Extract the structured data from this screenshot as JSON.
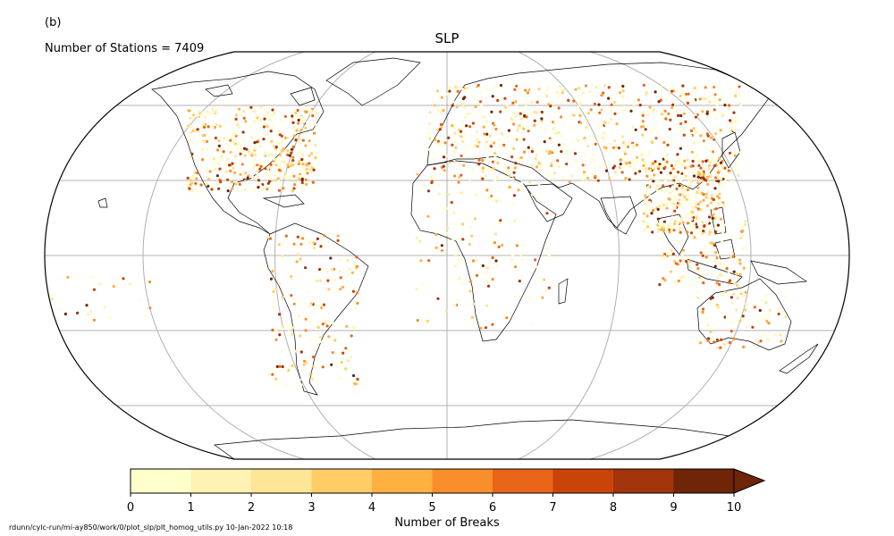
{
  "panel_label": "(b)",
  "station_count_text": "Number of Stations = 7409",
  "title": "SLP",
  "footer_note": "rdunn/cylc-run/mi-ay850/work/0/plot_slp/plt_homog_utils.py   10-Jan-2022 10:18",
  "colorbar": {
    "label": "Number of Breaks",
    "ticks": [
      "0",
      "1",
      "2",
      "3",
      "4",
      "5",
      "6",
      "7",
      "8",
      "9",
      "10"
    ],
    "colors": [
      "#ffffcc",
      "#fff3b3",
      "#ffe596",
      "#ffcc66",
      "#feb041",
      "#fa8e2a",
      "#e8651a",
      "#c94408",
      "#a3330b",
      "#6f2507"
    ],
    "extend": "max",
    "min": 0,
    "max": 10
  },
  "map": {
    "projection": "Robinson",
    "gridlines": true
  }
}
